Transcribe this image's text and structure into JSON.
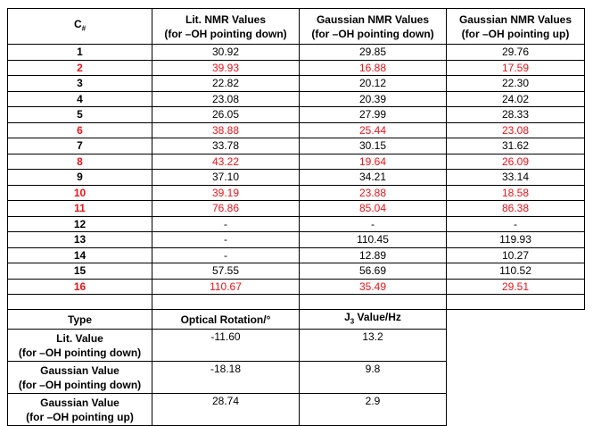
{
  "table": {
    "header": [
      {
        "text": "C",
        "sub": "#"
      },
      [
        "Lit. NMR Values",
        "(for –OH pointing down)"
      ],
      [
        "Gaussian NMR Values",
        "(for –OH pointing down)"
      ],
      [
        "Gaussian NMR  Values",
        "(for –OH pointing up)"
      ]
    ],
    "highlight_color": "#e8141b",
    "rows": [
      {
        "cells": [
          "1",
          "30.92",
          "29.85",
          "29.76"
        ],
        "highlight": false
      },
      {
        "cells": [
          "2",
          "39.93",
          "16.88",
          "17.59"
        ],
        "highlight": true
      },
      {
        "cells": [
          "3",
          "22.82",
          "20.12",
          "22.30"
        ],
        "highlight": false
      },
      {
        "cells": [
          "4",
          "23.08",
          "20.39",
          "24.02"
        ],
        "highlight": false
      },
      {
        "cells": [
          "5",
          "26.05",
          "27.99",
          "28.33"
        ],
        "highlight": false
      },
      {
        "cells": [
          "6",
          "38.88",
          "25.44",
          "23.08"
        ],
        "highlight": true
      },
      {
        "cells": [
          "7",
          "33.78",
          "30.15",
          "31.62"
        ],
        "highlight": false
      },
      {
        "cells": [
          "8",
          "43.22",
          "19.64",
          "26.09"
        ],
        "highlight": true
      },
      {
        "cells": [
          "9",
          "37.10",
          "34.21",
          "33.14"
        ],
        "highlight": false
      },
      {
        "cells": [
          "10",
          "39.19",
          "23.88",
          "18.58"
        ],
        "highlight": true
      },
      {
        "cells": [
          "11",
          "76.86",
          "85.04",
          "86.38"
        ],
        "highlight": true
      },
      {
        "cells": [
          "12",
          "-",
          "-",
          "-"
        ],
        "highlight": false
      },
      {
        "cells": [
          "13",
          "-",
          "110.45",
          "119.93"
        ],
        "highlight": false
      },
      {
        "cells": [
          "14",
          "-",
          "12.89",
          "10.27"
        ],
        "highlight": false
      },
      {
        "cells": [
          "15",
          "57.55",
          "56.69",
          "110.52"
        ],
        "highlight": false
      },
      {
        "cells": [
          "16",
          "110.67",
          "35.49",
          "29.51"
        ],
        "highlight": true
      }
    ]
  },
  "table2": {
    "header": [
      "Type",
      "Optical Rotation/°",
      {
        "text": "J",
        "sub": "3",
        "tail": " Value/Hz"
      }
    ],
    "rows": [
      [
        [
          "Lit. Value",
          "(for –OH pointing down)"
        ],
        "-11.60",
        "13.2"
      ],
      [
        [
          "Gaussian Value",
          "(for –OH pointing down)"
        ],
        "-18.18",
        "9.8"
      ],
      [
        [
          "Gaussian Value",
          "(for –OH pointing up)"
        ],
        "28.74",
        "2.9"
      ]
    ]
  }
}
